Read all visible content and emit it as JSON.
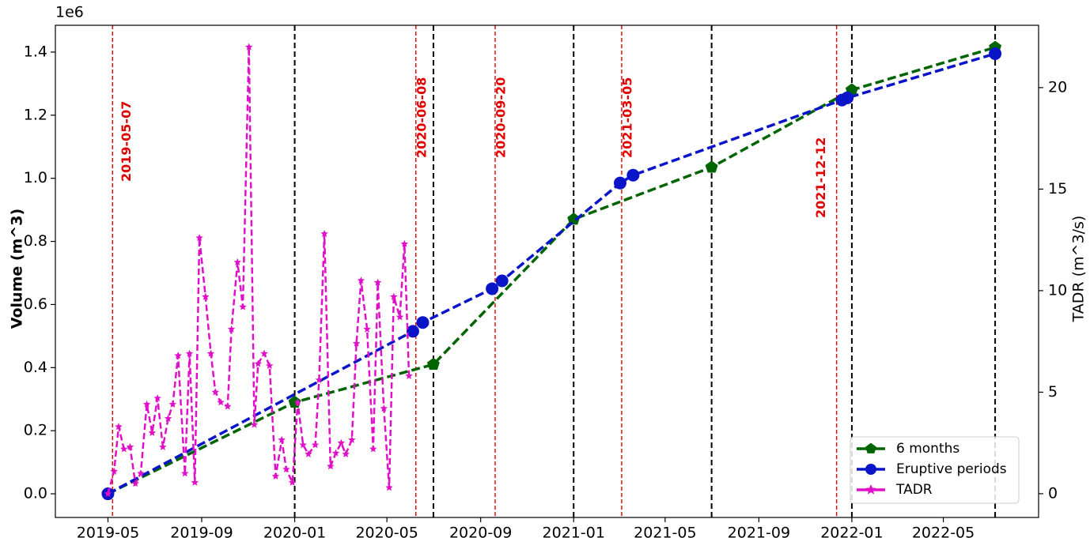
{
  "chart_data": {
    "type": "line",
    "y_offset_label": "1e6",
    "y_label": "Volume (m^3)",
    "y2_label": "TADR (m^3/s)",
    "y2_color": "#e010c8",
    "xlim": [
      "2019-02-21",
      "2022-09-03"
    ],
    "xticks": [
      {
        "value": "2019-05-01",
        "label": "2019-05"
      },
      {
        "value": "2019-09-01",
        "label": "2019-09"
      },
      {
        "value": "2020-01-01",
        "label": "2020-01"
      },
      {
        "value": "2020-05-01",
        "label": "2020-05"
      },
      {
        "value": "2020-09-01",
        "label": "2020-09"
      },
      {
        "value": "2021-01-01",
        "label": "2021-01"
      },
      {
        "value": "2021-05-01",
        "label": "2021-05"
      },
      {
        "value": "2021-09-01",
        "label": "2021-09"
      },
      {
        "value": "2022-01-01",
        "label": "2022-01"
      },
      {
        "value": "2022-05-01",
        "label": "2022-05"
      }
    ],
    "ylim": [
      -0.075,
      1.485
    ],
    "yticks": [
      {
        "value": 0,
        "label": "0.0"
      },
      0.2,
      0.4,
      0.6,
      0.8,
      {
        "value": 1,
        "label": "1.0"
      },
      1.2,
      1.4
    ],
    "y2lim": [
      -1.17,
      23.07
    ],
    "y2ticks": [
      0,
      5,
      10,
      15,
      20
    ],
    "legend": "lower right",
    "black_lines": {
      "color": "#000000",
      "x": [
        "2020-01-01",
        "2020-07-01",
        "2021-01-01",
        "2021-07-01",
        "2022-01-01",
        "2022-07-08"
      ]
    },
    "events": {
      "color": "#e00000",
      "dates": [
        "2019-05-07",
        "2020-06-08",
        "2020-09-20",
        "2021-03-05",
        "2021-12-12"
      ]
    },
    "series": [
      {
        "name": "6 months",
        "color": "#006400",
        "marker": "pentagon",
        "x": [
          "2019-05-01",
          "2020-01-01",
          "2020-07-01",
          "2021-01-01",
          "2021-07-01",
          "2022-01-01",
          "2022-07-08"
        ],
        "values": [
          0,
          0.29,
          0.41,
          0.87,
          1.035,
          1.28,
          1.415
        ]
      },
      {
        "name": "Eruptive periods",
        "color": "#0a14c8",
        "marker": "circle",
        "x": [
          "2019-05-01",
          "2020-06-04",
          "2020-06-17",
          "2020-09-16",
          "2020-09-29",
          "2021-03-03",
          "2021-03-20",
          "2021-12-19",
          "2021-12-26",
          "2022-07-08"
        ],
        "values": [
          0,
          0.515,
          0.543,
          0.65,
          0.675,
          0.985,
          1.01,
          1.248,
          1.255,
          1.395
        ]
      },
      {
        "name": "TADR",
        "color": "#e010c8",
        "marker": "star",
        "axis": "y2",
        "x": [
          "2019-05-01",
          "2019-05-09",
          "2019-05-15",
          "2019-05-22",
          "2019-05-30",
          "2019-06-06",
          "2019-06-13",
          "2019-06-21",
          "2019-06-28",
          "2019-07-05",
          "2019-07-12",
          "2019-07-19",
          "2019-07-25",
          "2019-08-01",
          "2019-08-10",
          "2019-08-16",
          "2019-08-23",
          "2019-08-29",
          "2019-09-06",
          "2019-09-13",
          "2019-09-19",
          "2019-09-26",
          "2019-10-05",
          "2019-10-10",
          "2019-10-18",
          "2019-10-25",
          "2019-11-02",
          "2019-11-09",
          "2019-11-14",
          "2019-11-22",
          "2019-11-29",
          "2019-12-07",
          "2019-12-15",
          "2019-12-21",
          "2019-12-29",
          "2020-01-05",
          "2020-01-12",
          "2020-01-19",
          "2020-01-28",
          "2020-02-02",
          "2020-02-09",
          "2020-02-17",
          "2020-02-24",
          "2020-03-02",
          "2020-03-08",
          "2020-03-16",
          "2020-03-22",
          "2020-03-28",
          "2020-04-05",
          "2020-04-13",
          "2020-04-19",
          "2020-04-27",
          "2020-05-04",
          "2020-05-10",
          "2020-05-18",
          "2020-05-24",
          "2020-05-30"
        ],
        "values": [
          0,
          1.1,
          3.3,
          2.2,
          2.3,
          0.5,
          1.0,
          4.4,
          3.0,
          4.7,
          2.3,
          3.7,
          4.4,
          6.8,
          1.0,
          6.9,
          0.55,
          12.6,
          9.7,
          6.9,
          5.0,
          4.5,
          4.3,
          8.1,
          11.4,
          9.2,
          22.0,
          3.4,
          6.4,
          6.9,
          6.3,
          0.86,
          2.65,
          1.2,
          0.55,
          4.5,
          2.4,
          1.95,
          2.4,
          5.6,
          12.8,
          1.35,
          2.0,
          2.5,
          1.95,
          2.65,
          7.4,
          10.5,
          8.1,
          2.2,
          10.4,
          4.2,
          0.3,
          9.7,
          8.7,
          12.3,
          5.8
        ]
      }
    ]
  }
}
